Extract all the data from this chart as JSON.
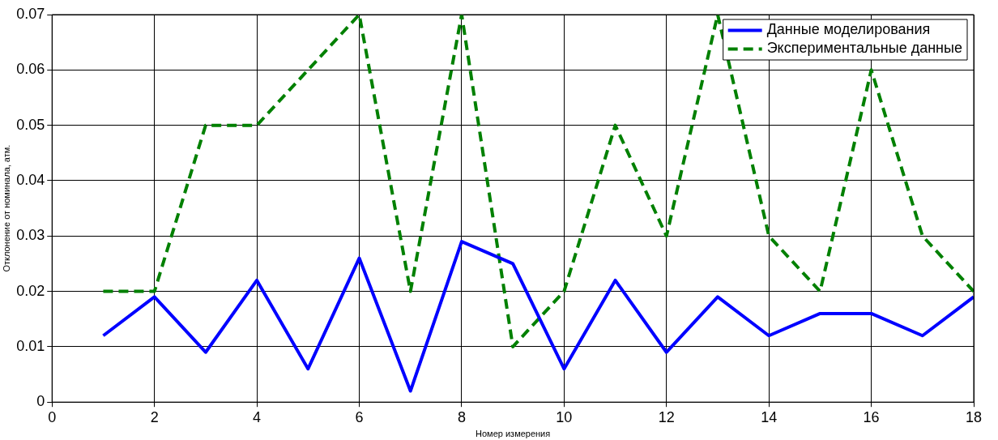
{
  "chart_data": {
    "type": "line",
    "xlabel": "Номер измерения",
    "ylabel": "Отклонение от номинала, атм.",
    "x": [
      1,
      2,
      3,
      4,
      5,
      6,
      7,
      8,
      9,
      10,
      11,
      12,
      13,
      14,
      15,
      16,
      17,
      18
    ],
    "series": [
      {
        "name": "Данные моделирования",
        "color": "#0000ff",
        "line_style": "solid",
        "values": [
          0.012,
          0.019,
          0.009,
          0.022,
          0.006,
          0.026,
          0.002,
          0.029,
          0.025,
          0.006,
          0.022,
          0.009,
          0.019,
          0.012,
          0.016,
          0.016,
          0.012,
          0.019
        ]
      },
      {
        "name": "Экспериментальные данные",
        "color": "#008000",
        "line_style": "dashed",
        "values": [
          0.02,
          0.02,
          0.05,
          0.05,
          0.06,
          0.07,
          0.02,
          0.07,
          0.01,
          0.02,
          0.05,
          0.03,
          0.07,
          0.03,
          0.02,
          0.06,
          0.03,
          0.02
        ]
      }
    ],
    "xlim": [
      0,
      18
    ],
    "xticks": [
      0,
      2,
      4,
      6,
      8,
      10,
      12,
      14,
      16,
      18
    ],
    "ylim": [
      0,
      0.07
    ],
    "yticks": [
      0,
      0.01,
      0.02,
      0.03,
      0.04,
      0.05,
      0.06,
      0.07
    ],
    "grid": true,
    "legend": "top right",
    "marker": "none"
  }
}
